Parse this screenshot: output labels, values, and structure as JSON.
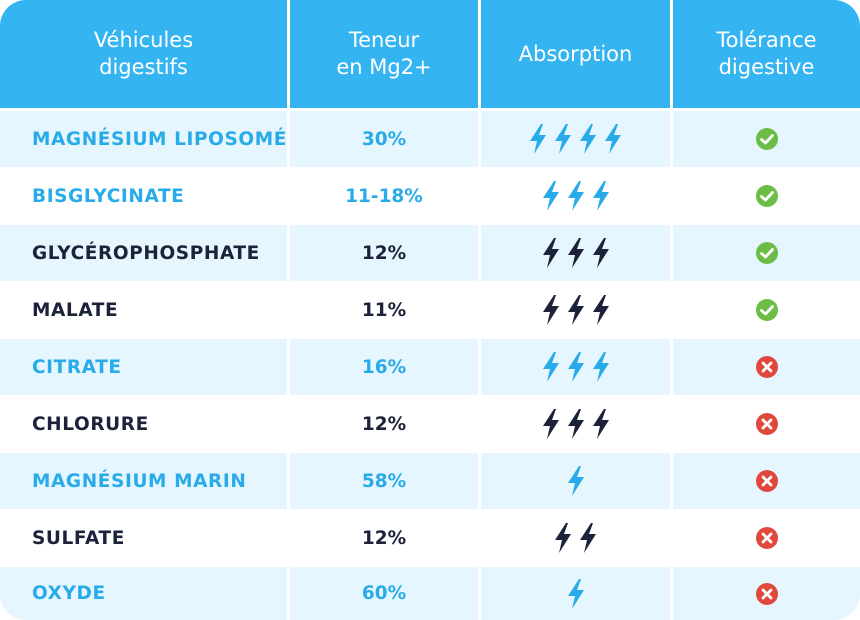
{
  "colors": {
    "header_bg": "#35b4f2",
    "highlight_text": "#29abe9",
    "dark_text": "#1c2239",
    "row_alt_bg": "#e6f6fe",
    "check_green": "#6bbd45",
    "cross_red": "#e0483e"
  },
  "headers": {
    "vehicle": "Véhicules\ndigestifs",
    "content": "Teneur\nen Mg2+",
    "absorption": "Absorption",
    "tolerance": "Tolérance\ndigestive"
  },
  "rows": [
    {
      "name": "MAGNÉSIUM LIPOSOMÉ",
      "content": "30%",
      "absorption": 4,
      "tolerance": "check-icon",
      "highlight": true
    },
    {
      "name": "BISGLYCINATE",
      "content": "11-18%",
      "absorption": 3,
      "tolerance": "check-icon",
      "highlight": true
    },
    {
      "name": "GLYCÉROPHOSPHATE",
      "content": "12%",
      "absorption": 3,
      "tolerance": "check-icon",
      "highlight": false
    },
    {
      "name": "MALATE",
      "content": "11%",
      "absorption": 3,
      "tolerance": "check-icon",
      "highlight": false
    },
    {
      "name": "CITRATE",
      "content": "16%",
      "absorption": 3,
      "tolerance": "cross-icon",
      "highlight": true
    },
    {
      "name": "CHLORURE",
      "content": "12%",
      "absorption": 3,
      "tolerance": "cross-icon",
      "highlight": false
    },
    {
      "name": "MAGNÉSIUM MARIN",
      "content": "58%",
      "absorption": 1,
      "tolerance": "cross-icon",
      "highlight": true
    },
    {
      "name": "SULFATE",
      "content": "12%",
      "absorption": 2,
      "tolerance": "cross-icon",
      "highlight": false
    },
    {
      "name": "OXYDE",
      "content": "60%",
      "absorption": 1,
      "tolerance": "cross-icon",
      "highlight": true
    }
  ]
}
